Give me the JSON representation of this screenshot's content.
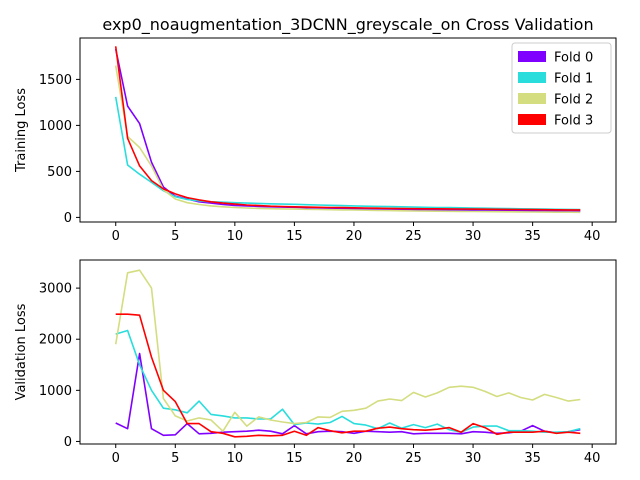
{
  "title": "exp0_noaugmentation_3DCNN_greyscale_on Cross Validation",
  "legend": {
    "placement": "top-right",
    "entries": [
      "Fold 0",
      "Fold 1",
      "Fold 2",
      "Fold 3"
    ]
  },
  "colors": {
    "fold0": "#8000ff",
    "fold1": "#2adddd",
    "fold2": "#d4dd80",
    "fold3": "#ff0000"
  },
  "chart_data": [
    {
      "type": "line",
      "ylabel": "Training Loss",
      "xlabel": "",
      "xlim": [
        -3,
        42
      ],
      "ylim": [
        -50,
        1950
      ],
      "xticks": [
        0,
        5,
        10,
        15,
        20,
        25,
        30,
        35,
        40
      ],
      "yticks": [
        0,
        500,
        1000,
        1500
      ],
      "x": [
        0,
        1,
        2,
        3,
        4,
        5,
        6,
        7,
        8,
        9,
        10,
        11,
        12,
        13,
        14,
        15,
        16,
        17,
        18,
        19,
        20,
        21,
        22,
        23,
        24,
        25,
        26,
        27,
        28,
        29,
        30,
        31,
        32,
        33,
        34,
        35,
        36,
        37,
        38,
        39
      ],
      "series": [
        {
          "name": "Fold 0",
          "values": [
            1830,
            1210,
            1020,
            600,
            330,
            230,
            200,
            170,
            155,
            140,
            130,
            125,
            120,
            115,
            112,
            110,
            105,
            102,
            100,
            98,
            95,
            93,
            90,
            88,
            86,
            85,
            83,
            82,
            80,
            79,
            78,
            77,
            76,
            75,
            74,
            73,
            72,
            71,
            70,
            69
          ]
        },
        {
          "name": "Fold 1",
          "values": [
            1310,
            570,
            470,
            380,
            290,
            225,
            195,
            180,
            170,
            165,
            160,
            155,
            152,
            148,
            145,
            142,
            138,
            135,
            132,
            128,
            125,
            122,
            120,
            117,
            115,
            112,
            110,
            108,
            106,
            104,
            102,
            100,
            98,
            96,
            94,
            92,
            90,
            88,
            87,
            86
          ]
        },
        {
          "name": "Fold 2",
          "values": [
            1650,
            880,
            760,
            560,
            300,
            200,
            160,
            140,
            125,
            115,
            108,
            102,
            98,
            95,
            92,
            90,
            88,
            86,
            84,
            82,
            80,
            78,
            76,
            74,
            72,
            70,
            68,
            67,
            66,
            65,
            64,
            63,
            62,
            61,
            60,
            59,
            58,
            57,
            56,
            55
          ]
        },
        {
          "name": "Fold 3",
          "values": [
            1860,
            860,
            560,
            400,
            310,
            255,
            215,
            190,
            170,
            155,
            145,
            135,
            128,
            122,
            118,
            115,
            112,
            110,
            108,
            106,
            104,
            102,
            100,
            98,
            96,
            95,
            94,
            93,
            92,
            91,
            90,
            89,
            88,
            87,
            86,
            85,
            84,
            83,
            82,
            81
          ]
        }
      ]
    },
    {
      "type": "line",
      "ylabel": "Validation Loss",
      "xlabel": "",
      "xlim": [
        -3,
        42
      ],
      "ylim": [
        -50,
        3550
      ],
      "xticks": [
        0,
        5,
        10,
        15,
        20,
        25,
        30,
        35,
        40
      ],
      "yticks": [
        0,
        1000,
        2000,
        3000
      ],
      "x": [
        0,
        1,
        2,
        3,
        4,
        5,
        6,
        7,
        8,
        9,
        10,
        11,
        12,
        13,
        14,
        15,
        16,
        17,
        18,
        19,
        20,
        21,
        22,
        23,
        24,
        25,
        26,
        27,
        28,
        29,
        30,
        31,
        32,
        33,
        34,
        35,
        36,
        37,
        38,
        39
      ],
      "series": [
        {
          "name": "Fold 0",
          "values": [
            360,
            250,
            1720,
            250,
            120,
            130,
            350,
            150,
            160,
            180,
            190,
            200,
            220,
            200,
            150,
            310,
            150,
            190,
            200,
            190,
            160,
            200,
            190,
            180,
            190,
            150,
            160,
            160,
            160,
            150,
            190,
            180,
            160,
            170,
            200,
            310,
            200,
            170,
            190,
            230
          ]
        },
        {
          "name": "Fold 1",
          "values": [
            2100,
            2170,
            1500,
            1000,
            650,
            620,
            560,
            790,
            530,
            500,
            460,
            460,
            440,
            440,
            630,
            330,
            360,
            340,
            370,
            490,
            350,
            320,
            250,
            360,
            260,
            330,
            270,
            340,
            230,
            180,
            280,
            300,
            300,
            210,
            210,
            200,
            180,
            180,
            190,
            250
          ]
        },
        {
          "name": "Fold 2",
          "values": [
            1900,
            3300,
            3350,
            3000,
            840,
            500,
            400,
            460,
            420,
            200,
            570,
            300,
            480,
            420,
            380,
            350,
            370,
            480,
            470,
            590,
            610,
            650,
            790,
            830,
            800,
            960,
            870,
            950,
            1060,
            1080,
            1060,
            980,
            880,
            950,
            860,
            810,
            920,
            860,
            790,
            820
          ]
        },
        {
          "name": "Fold 3",
          "values": [
            2490,
            2490,
            2470,
            1650,
            1000,
            780,
            350,
            350,
            190,
            160,
            90,
            100,
            120,
            110,
            120,
            200,
            120,
            270,
            210,
            170,
            200,
            200,
            260,
            280,
            250,
            230,
            220,
            240,
            270,
            180,
            350,
            270,
            140,
            180,
            180,
            180,
            200,
            160,
            180,
            160
          ]
        }
      ]
    }
  ]
}
